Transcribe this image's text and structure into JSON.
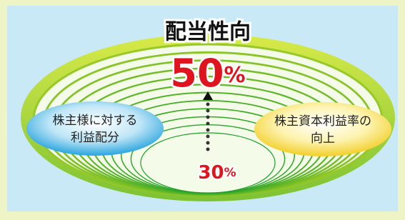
{
  "title": "配当性向",
  "top_value": {
    "number": "50",
    "unit": "%"
  },
  "bottom_value": {
    "number": "30",
    "unit": "%"
  },
  "left_bubble": {
    "lines": [
      "株主様に対する",
      "利益配分"
    ]
  },
  "right_bubble": {
    "lines": [
      "株主資本利益率の",
      "向上"
    ]
  }
}
